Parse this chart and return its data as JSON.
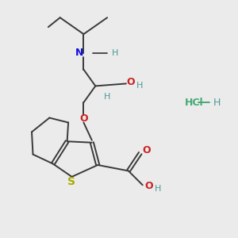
{
  "bg_color": "#ebebeb",
  "bond_color": "#3a3a3a",
  "N_color": "#1010dd",
  "O_color": "#cc2222",
  "S_color": "#aaaa00",
  "teal_color": "#4d9999",
  "green_color": "#44aa77",
  "line_width": 1.4,
  "figsize": [
    3.0,
    3.0
  ],
  "dpi": 100,
  "xlim": [
    0,
    10
  ],
  "ylim": [
    0,
    10
  ],
  "isopropyl": {
    "ch_x": 3.5,
    "ch_y": 8.6,
    "me1_x": 2.5,
    "me1_y": 9.3,
    "me2_x": 4.5,
    "me2_y": 9.3,
    "me1b_x": 2.0,
    "me1b_y": 8.9
  },
  "N_x": 3.5,
  "N_y": 7.8,
  "NH_dash_x1": 3.9,
  "NH_dash_x2": 4.5,
  "NH_y": 7.8,
  "c1_x": 3.5,
  "c1_y": 7.1,
  "chiral_x": 4.0,
  "chiral_y": 6.4,
  "OH_bond_x2": 5.3,
  "OH_bond_y2": 6.5,
  "H_chiral_x": 4.5,
  "H_chiral_y": 5.95,
  "c2_x": 3.5,
  "c2_y": 5.7,
  "Olink_x": 3.5,
  "Olink_y": 5.05,
  "S_x": 3.0,
  "S_y": 2.55,
  "C2t_x": 4.1,
  "C2t_y": 3.05,
  "C3_x": 3.85,
  "C3_y": 4.0,
  "C3a_x": 2.8,
  "C3a_y": 4.05,
  "C7a_x": 2.2,
  "C7a_y": 3.1,
  "C4_x": 2.85,
  "C4_y": 4.85,
  "C5_x": 2.05,
  "C5_y": 5.05,
  "C6_x": 1.3,
  "C6_y": 4.45,
  "C7_x": 1.35,
  "C7_y": 3.5,
  "COOH_c_x": 5.4,
  "COOH_c_y": 2.8,
  "CO_x": 5.9,
  "CO_y": 3.55,
  "COH_x": 6.0,
  "COH_y": 2.2,
  "HCl_x": 7.8,
  "HCl_y": 5.7,
  "dash_x1": 8.35,
  "dash_x2": 8.85,
  "dash_y": 5.7,
  "H2_x": 9.0,
  "H2_y": 5.7
}
